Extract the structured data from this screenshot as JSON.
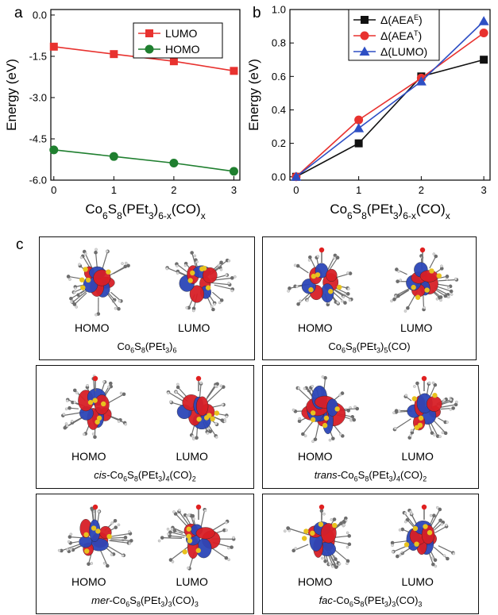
{
  "panels": {
    "a": "a",
    "b": "b",
    "c": "c"
  },
  "chart_data": [
    {
      "type": "line",
      "panel": "a",
      "ylabel": "Energy (eV)",
      "xlabel_parts": [
        "Co",
        "6",
        "S",
        "8",
        "(PEt",
        "3",
        ")",
        "6-x",
        "(CO)",
        "x"
      ],
      "x": [
        0,
        1,
        2,
        3
      ],
      "xlim": [
        -0.05,
        3.1
      ],
      "ylim": [
        -6.0,
        0.2
      ],
      "xticks": [
        "0",
        "1",
        "2",
        "3"
      ],
      "yticks": [
        "0.0",
        "-1.5",
        "-3.0",
        "-4.5",
        "-6.0"
      ],
      "legend_position": "top-right",
      "series": [
        {
          "name": "LUMO",
          "values": [
            -1.15,
            -1.42,
            -1.68,
            -2.03
          ],
          "color": "#e8322f",
          "marker": "square"
        },
        {
          "name": "HOMO",
          "values": [
            -4.9,
            -5.14,
            -5.38,
            -5.68
          ],
          "color": "#1f7f2f",
          "marker": "circle"
        }
      ]
    },
    {
      "type": "line",
      "panel": "b",
      "ylabel": "Energy (eV)",
      "xlabel_parts": [
        "Co",
        "6",
        "S",
        "8",
        "(PEt",
        "3",
        ")",
        "6-x",
        "(CO)",
        "x"
      ],
      "x": [
        0,
        1,
        2,
        3
      ],
      "xlim": [
        -0.1,
        3.1
      ],
      "ylim": [
        -0.02,
        1.0
      ],
      "xticks": [
        "0",
        "1",
        "2",
        "3"
      ],
      "yticks": [
        "0.0",
        "0.2",
        "0.4",
        "0.6",
        "0.8",
        "1.0"
      ],
      "legend_position": "top-left",
      "series": [
        {
          "name": "Δ(AEA",
          "sup": "E",
          "values": [
            0.0,
            0.2,
            0.6,
            0.7
          ],
          "color": "#111111",
          "marker": "square"
        },
        {
          "name": "Δ(AEA",
          "sup": "T",
          "values": [
            0.0,
            0.34,
            0.59,
            0.86
          ],
          "color": "#e8322f",
          "marker": "circle"
        },
        {
          "name": "Δ(LUMO)",
          "sup": "",
          "values": [
            0.0,
            0.29,
            0.57,
            0.93
          ],
          "color": "#2e4fc4",
          "marker": "triangle"
        }
      ]
    }
  ],
  "molecules": [
    {
      "homo": "HOMO",
      "lumo": "LUMO",
      "prefix": "",
      "formula": [
        "Co",
        "6",
        "S",
        "8",
        "(PEt",
        "3",
        ")",
        "6",
        "",
        ""
      ]
    },
    {
      "homo": "HOMO",
      "lumo": "LUMO",
      "prefix": "",
      "formula": [
        "Co",
        "6",
        "S",
        "8",
        "(PEt",
        "3",
        ")",
        "5",
        "(CO)",
        ""
      ]
    },
    {
      "homo": "HOMO",
      "lumo": "LUMO",
      "prefix": "cis-",
      "formula": [
        "Co",
        "6",
        "S",
        "8",
        "(PEt",
        "3",
        ")",
        "4",
        "(CO)",
        "2"
      ]
    },
    {
      "homo": "HOMO",
      "lumo": "LUMO",
      "prefix": "trans-",
      "formula": [
        "Co",
        "6",
        "S",
        "8",
        "(PEt",
        "3",
        ")",
        "4",
        "(CO)",
        "2"
      ]
    },
    {
      "homo": "HOMO",
      "lumo": "LUMO",
      "prefix": "mer-",
      "formula": [
        "Co",
        "6",
        "S",
        "8",
        "(PEt",
        "3",
        ")",
        "3",
        "(CO)",
        "3"
      ]
    },
    {
      "homo": "HOMO",
      "lumo": "LUMO",
      "prefix": "fac-",
      "formula": [
        "Co",
        "6",
        "S",
        "8",
        "(PEt",
        "3",
        ")",
        "3",
        "(CO)",
        "3"
      ]
    }
  ],
  "orbital_colors": {
    "positive": "#d81f26",
    "negative": "#2c46b8",
    "sulfur": "#e8c21e",
    "carbon": "#6d6d6d",
    "hydrogen": "#d9d9d9",
    "oxygen": "#e02020"
  }
}
